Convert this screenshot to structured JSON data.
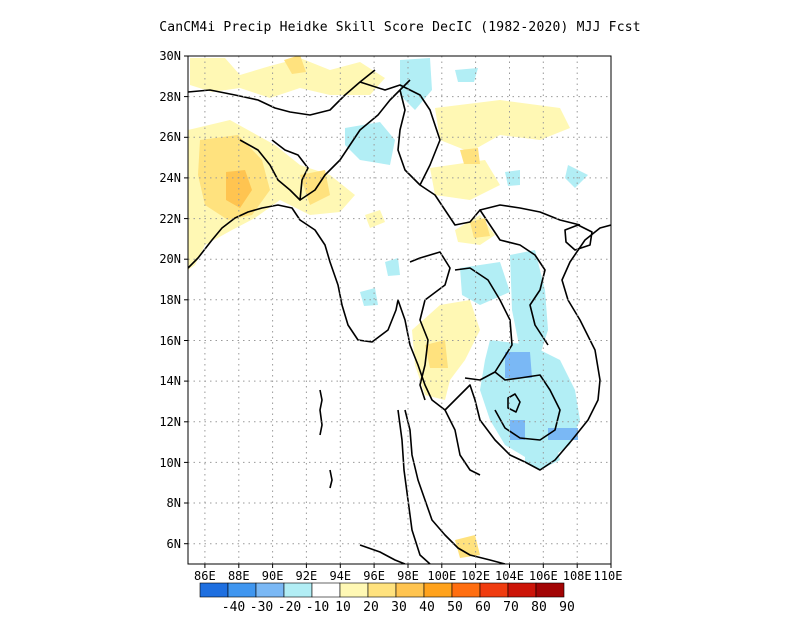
{
  "title": "CanCM4i Precip Heidke Skill Score DecIC (1982-2020) MJJ Fcst",
  "map": {
    "lon_range": [
      85,
      110
    ],
    "lat_range": [
      5,
      30
    ],
    "lat_ticks": [
      "30N",
      "28N",
      "26N",
      "24N",
      "22N",
      "20N",
      "18N",
      "16N",
      "14N",
      "12N",
      "10N",
      "8N",
      "6N"
    ],
    "lon_ticks": [
      "86E",
      "88E",
      "90E",
      "92E",
      "94E",
      "96E",
      "98E",
      "100E",
      "102E",
      "104E",
      "106E",
      "108E",
      "110E"
    ],
    "grid": "dotted"
  },
  "colorbar": {
    "labels": [
      "-40",
      "-30",
      "-20",
      "-10",
      "10",
      "20",
      "30",
      "40",
      "50",
      "60",
      "70",
      "80",
      "90"
    ],
    "colors": [
      "#1e6fe0",
      "#3f96f0",
      "#7ab8f5",
      "#b2eef5",
      "#ffffff",
      "#fff8b4",
      "#ffe27e",
      "#ffc450",
      "#ffa21c",
      "#ff6e10",
      "#f03c10",
      "#cc1408",
      "#a20404"
    ]
  }
}
